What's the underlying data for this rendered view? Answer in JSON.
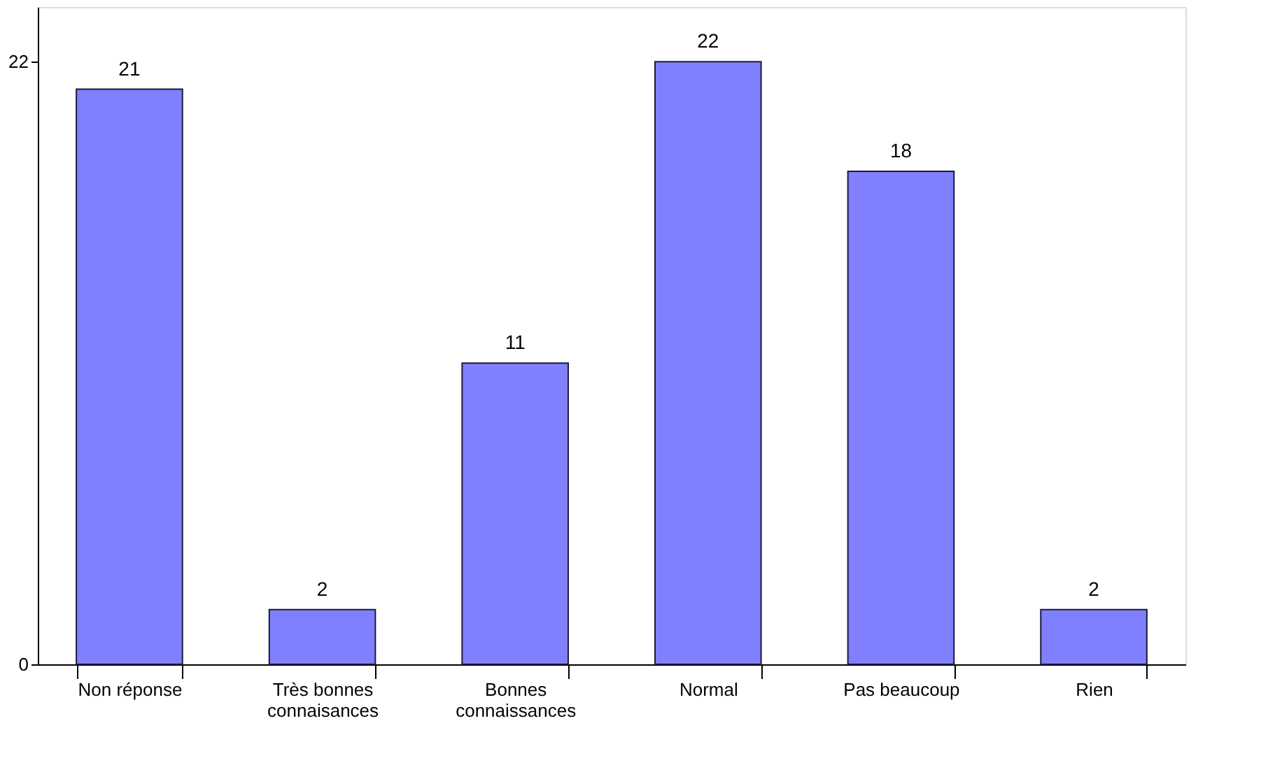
{
  "chart_data": {
    "type": "bar",
    "categories": [
      "Non réponse",
      "Très bonnes connaisances",
      "Bonnes connaissances",
      "Normal",
      "Pas beaucoup",
      "Rien"
    ],
    "values": [
      21,
      2,
      11,
      22,
      18,
      2
    ],
    "color": "#8080ff",
    "ylim": [
      0,
      24
    ],
    "yticks": [
      0,
      22
    ],
    "data_labels": true,
    "grid": false
  }
}
